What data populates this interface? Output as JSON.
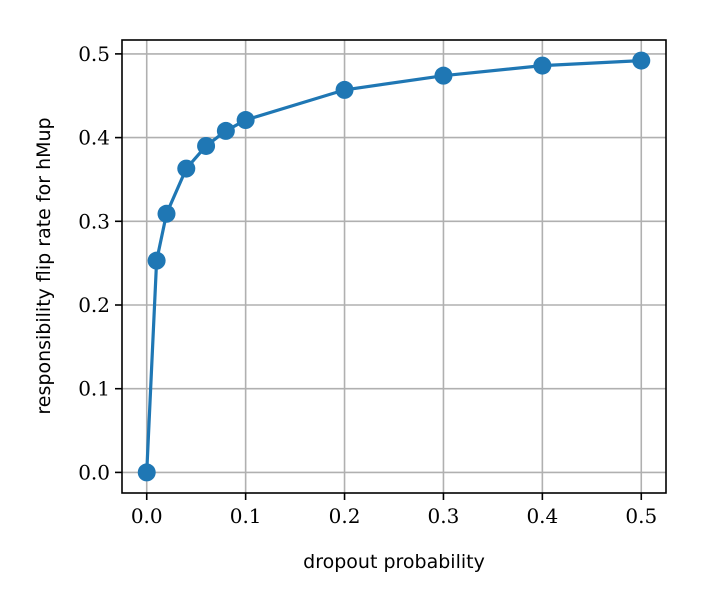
{
  "chart_data": {
    "type": "line",
    "x_label": "dropout probability",
    "y_label": "responsibility flip rate for hMup",
    "x": [
      0,
      0.01,
      0.02,
      0.04,
      0.06,
      0.08,
      0.1,
      0.2,
      0.3,
      0.4,
      0.5
    ],
    "series": [
      {
        "color": "#1f77b4",
        "values": [
          0.0,
          0.253,
          0.309,
          0.363,
          0.39,
          0.408,
          0.421,
          0.457,
          0.474,
          0.486,
          0.492
        ]
      }
    ],
    "xlim": [
      -0.025,
      0.525
    ],
    "ylim": [
      -0.0246,
      0.5166
    ],
    "xticks": [
      {
        "value": 0,
        "label": "0.0"
      },
      0.1,
      0.2,
      0.3,
      0.4,
      0.5
    ],
    "yticks": [
      {
        "value": 0,
        "label": "0.0"
      },
      0.1,
      0.2,
      0.3,
      0.4,
      0.5
    ],
    "grid": true
  }
}
